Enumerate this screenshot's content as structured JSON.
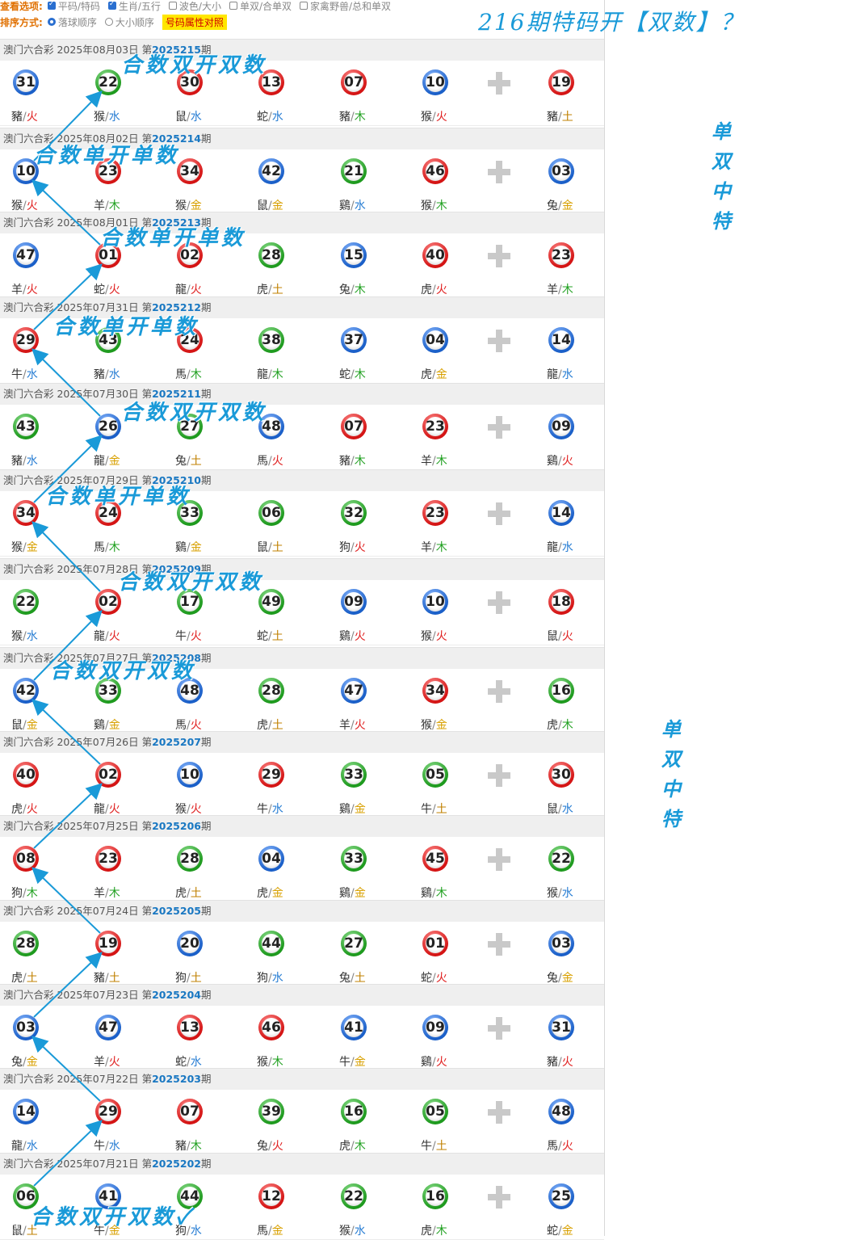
{
  "options": {
    "view_label": "查看选项:",
    "view_items": [
      {
        "label": "平码/特码",
        "checked": true
      },
      {
        "label": "生肖/五行",
        "checked": true
      },
      {
        "label": "波色/大小",
        "checked": false
      },
      {
        "label": "单双/合单双",
        "checked": false
      },
      {
        "label": "家禽野兽/总和单双",
        "checked": false
      }
    ],
    "sort_label": "排序方式:",
    "sort_items": [
      {
        "label": "落球顺序",
        "selected": true
      },
      {
        "label": "大小顺序",
        "selected": false
      }
    ],
    "compare_button": "号码属性对照"
  },
  "headline": "216期特码开【双数】？",
  "side_notes": [
    {
      "text": [
        "单",
        "双",
        "中",
        "特"
      ]
    },
    {
      "text": [
        "单",
        "双",
        "中",
        "特"
      ]
    }
  ],
  "draw_prefix": "澳门六合彩",
  "period_prefix": "第",
  "period_suffix": "期",
  "colors": {
    "red": "#d41414",
    "blue": "#1a5fc8",
    "green": "#1e9a1e",
    "annotation": "#1a9ad8"
  },
  "draws": [
    {
      "date": "2025年08月03日",
      "period": "2025215",
      "balls": [
        {
          "n": "31",
          "c": "blue",
          "z": "豬",
          "e": "火"
        },
        {
          "n": "22",
          "c": "green",
          "z": "猴",
          "e": "水"
        },
        {
          "n": "30",
          "c": "red",
          "z": "鼠",
          "e": "水"
        },
        {
          "n": "13",
          "c": "red",
          "z": "蛇",
          "e": "水"
        },
        {
          "n": "07",
          "c": "red",
          "z": "豬",
          "e": "木"
        },
        {
          "n": "10",
          "c": "blue",
          "z": "猴",
          "e": "火"
        },
        {
          "n": "19",
          "c": "red",
          "z": "豬",
          "e": "土"
        }
      ]
    },
    {
      "date": "2025年08月02日",
      "period": "2025214",
      "balls": [
        {
          "n": "10",
          "c": "blue",
          "z": "猴",
          "e": "火"
        },
        {
          "n": "23",
          "c": "red",
          "z": "羊",
          "e": "木"
        },
        {
          "n": "34",
          "c": "red",
          "z": "猴",
          "e": "金"
        },
        {
          "n": "42",
          "c": "blue",
          "z": "鼠",
          "e": "金"
        },
        {
          "n": "21",
          "c": "green",
          "z": "鷄",
          "e": "水"
        },
        {
          "n": "46",
          "c": "red",
          "z": "猴",
          "e": "木"
        },
        {
          "n": "03",
          "c": "blue",
          "z": "兔",
          "e": "金"
        }
      ]
    },
    {
      "date": "2025年08月01日",
      "period": "2025213",
      "balls": [
        {
          "n": "47",
          "c": "blue",
          "z": "羊",
          "e": "火"
        },
        {
          "n": "01",
          "c": "red",
          "z": "蛇",
          "e": "火"
        },
        {
          "n": "02",
          "c": "red",
          "z": "龍",
          "e": "火"
        },
        {
          "n": "28",
          "c": "green",
          "z": "虎",
          "e": "土"
        },
        {
          "n": "15",
          "c": "blue",
          "z": "兔",
          "e": "木"
        },
        {
          "n": "40",
          "c": "red",
          "z": "虎",
          "e": "火"
        },
        {
          "n": "23",
          "c": "red",
          "z": "羊",
          "e": "木"
        }
      ]
    },
    {
      "date": "2025年07月31日",
      "period": "2025212",
      "balls": [
        {
          "n": "29",
          "c": "red",
          "z": "牛",
          "e": "水"
        },
        {
          "n": "43",
          "c": "green",
          "z": "豬",
          "e": "水"
        },
        {
          "n": "24",
          "c": "red",
          "z": "馬",
          "e": "木"
        },
        {
          "n": "38",
          "c": "green",
          "z": "龍",
          "e": "木"
        },
        {
          "n": "37",
          "c": "blue",
          "z": "蛇",
          "e": "木"
        },
        {
          "n": "04",
          "c": "blue",
          "z": "虎",
          "e": "金"
        },
        {
          "n": "14",
          "c": "blue",
          "z": "龍",
          "e": "水"
        }
      ]
    },
    {
      "date": "2025年07月30日",
      "period": "2025211",
      "balls": [
        {
          "n": "43",
          "c": "green",
          "z": "豬",
          "e": "水"
        },
        {
          "n": "26",
          "c": "blue",
          "z": "龍",
          "e": "金"
        },
        {
          "n": "27",
          "c": "green",
          "z": "兔",
          "e": "土"
        },
        {
          "n": "48",
          "c": "blue",
          "z": "馬",
          "e": "火"
        },
        {
          "n": "07",
          "c": "red",
          "z": "豬",
          "e": "木"
        },
        {
          "n": "23",
          "c": "red",
          "z": "羊",
          "e": "木"
        },
        {
          "n": "09",
          "c": "blue",
          "z": "鷄",
          "e": "火"
        }
      ]
    },
    {
      "date": "2025年07月29日",
      "period": "2025210",
      "balls": [
        {
          "n": "34",
          "c": "red",
          "z": "猴",
          "e": "金"
        },
        {
          "n": "24",
          "c": "red",
          "z": "馬",
          "e": "木"
        },
        {
          "n": "33",
          "c": "green",
          "z": "鷄",
          "e": "金"
        },
        {
          "n": "06",
          "c": "green",
          "z": "鼠",
          "e": "土"
        },
        {
          "n": "32",
          "c": "green",
          "z": "狗",
          "e": "火"
        },
        {
          "n": "23",
          "c": "red",
          "z": "羊",
          "e": "木"
        },
        {
          "n": "14",
          "c": "blue",
          "z": "龍",
          "e": "水"
        }
      ]
    },
    {
      "date": "2025年07月28日",
      "period": "2025209",
      "balls": [
        {
          "n": "22",
          "c": "green",
          "z": "猴",
          "e": "水"
        },
        {
          "n": "02",
          "c": "red",
          "z": "龍",
          "e": "火"
        },
        {
          "n": "17",
          "c": "green",
          "z": "牛",
          "e": "火"
        },
        {
          "n": "49",
          "c": "green",
          "z": "蛇",
          "e": "土"
        },
        {
          "n": "09",
          "c": "blue",
          "z": "鷄",
          "e": "火"
        },
        {
          "n": "10",
          "c": "blue",
          "z": "猴",
          "e": "火"
        },
        {
          "n": "18",
          "c": "red",
          "z": "鼠",
          "e": "火"
        }
      ]
    },
    {
      "date": "2025年07月27日",
      "period": "2025208",
      "balls": [
        {
          "n": "42",
          "c": "blue",
          "z": "鼠",
          "e": "金"
        },
        {
          "n": "33",
          "c": "green",
          "z": "鷄",
          "e": "金"
        },
        {
          "n": "48",
          "c": "blue",
          "z": "馬",
          "e": "火"
        },
        {
          "n": "28",
          "c": "green",
          "z": "虎",
          "e": "土"
        },
        {
          "n": "47",
          "c": "blue",
          "z": "羊",
          "e": "火"
        },
        {
          "n": "34",
          "c": "red",
          "z": "猴",
          "e": "金"
        },
        {
          "n": "16",
          "c": "green",
          "z": "虎",
          "e": "木"
        }
      ]
    },
    {
      "date": "2025年07月26日",
      "period": "2025207",
      "balls": [
        {
          "n": "40",
          "c": "red",
          "z": "虎",
          "e": "火"
        },
        {
          "n": "02",
          "c": "red",
          "z": "龍",
          "e": "火"
        },
        {
          "n": "10",
          "c": "blue",
          "z": "猴",
          "e": "火"
        },
        {
          "n": "29",
          "c": "red",
          "z": "牛",
          "e": "水"
        },
        {
          "n": "33",
          "c": "green",
          "z": "鷄",
          "e": "金"
        },
        {
          "n": "05",
          "c": "green",
          "z": "牛",
          "e": "土"
        },
        {
          "n": "30",
          "c": "red",
          "z": "鼠",
          "e": "水"
        }
      ]
    },
    {
      "date": "2025年07月25日",
      "period": "2025206",
      "balls": [
        {
          "n": "08",
          "c": "red",
          "z": "狗",
          "e": "木"
        },
        {
          "n": "23",
          "c": "red",
          "z": "羊",
          "e": "木"
        },
        {
          "n": "28",
          "c": "green",
          "z": "虎",
          "e": "土"
        },
        {
          "n": "04",
          "c": "blue",
          "z": "虎",
          "e": "金"
        },
        {
          "n": "33",
          "c": "green",
          "z": "鷄",
          "e": "金"
        },
        {
          "n": "45",
          "c": "red",
          "z": "鷄",
          "e": "木"
        },
        {
          "n": "22",
          "c": "green",
          "z": "猴",
          "e": "水"
        }
      ]
    },
    {
      "date": "2025年07月24日",
      "period": "2025205",
      "balls": [
        {
          "n": "28",
          "c": "green",
          "z": "虎",
          "e": "土"
        },
        {
          "n": "19",
          "c": "red",
          "z": "豬",
          "e": "土"
        },
        {
          "n": "20",
          "c": "blue",
          "z": "狗",
          "e": "土"
        },
        {
          "n": "44",
          "c": "green",
          "z": "狗",
          "e": "水"
        },
        {
          "n": "27",
          "c": "green",
          "z": "兔",
          "e": "土"
        },
        {
          "n": "01",
          "c": "red",
          "z": "蛇",
          "e": "火"
        },
        {
          "n": "03",
          "c": "blue",
          "z": "兔",
          "e": "金"
        }
      ]
    },
    {
      "date": "2025年07月23日",
      "period": "2025204",
      "balls": [
        {
          "n": "03",
          "c": "blue",
          "z": "兔",
          "e": "金"
        },
        {
          "n": "47",
          "c": "blue",
          "z": "羊",
          "e": "火"
        },
        {
          "n": "13",
          "c": "red",
          "z": "蛇",
          "e": "水"
        },
        {
          "n": "46",
          "c": "red",
          "z": "猴",
          "e": "木"
        },
        {
          "n": "41",
          "c": "blue",
          "z": "牛",
          "e": "金"
        },
        {
          "n": "09",
          "c": "blue",
          "z": "鷄",
          "e": "火"
        },
        {
          "n": "31",
          "c": "blue",
          "z": "豬",
          "e": "火"
        }
      ]
    },
    {
      "date": "2025年07月22日",
      "period": "2025203",
      "balls": [
        {
          "n": "14",
          "c": "blue",
          "z": "龍",
          "e": "水"
        },
        {
          "n": "29",
          "c": "red",
          "z": "牛",
          "e": "水"
        },
        {
          "n": "07",
          "c": "red",
          "z": "豬",
          "e": "木"
        },
        {
          "n": "39",
          "c": "green",
          "z": "兔",
          "e": "火"
        },
        {
          "n": "16",
          "c": "green",
          "z": "虎",
          "e": "木"
        },
        {
          "n": "05",
          "c": "green",
          "z": "牛",
          "e": "土"
        },
        {
          "n": "48",
          "c": "blue",
          "z": "馬",
          "e": "火"
        }
      ]
    },
    {
      "date": "2025年07月21日",
      "period": "2025202",
      "balls": [
        {
          "n": "06",
          "c": "green",
          "z": "鼠",
          "e": "土"
        },
        {
          "n": "41",
          "c": "blue",
          "z": "牛",
          "e": "金"
        },
        {
          "n": "44",
          "c": "green",
          "z": "狗",
          "e": "水"
        },
        {
          "n": "12",
          "c": "red",
          "z": "馬",
          "e": "金"
        },
        {
          "n": "22",
          "c": "green",
          "z": "猴",
          "e": "水"
        },
        {
          "n": "16",
          "c": "green",
          "z": "虎",
          "e": "木"
        },
        {
          "n": "25",
          "c": "blue",
          "z": "蛇",
          "e": "金"
        }
      ]
    }
  ],
  "annotations": [
    "合数双开双数",
    "合数单开单数",
    "合数单开单数",
    "合数单开单数",
    "合数双开双数",
    "合数单开单数",
    "合数双开双数",
    "合数双开双数",
    "合数双开双数✓"
  ]
}
